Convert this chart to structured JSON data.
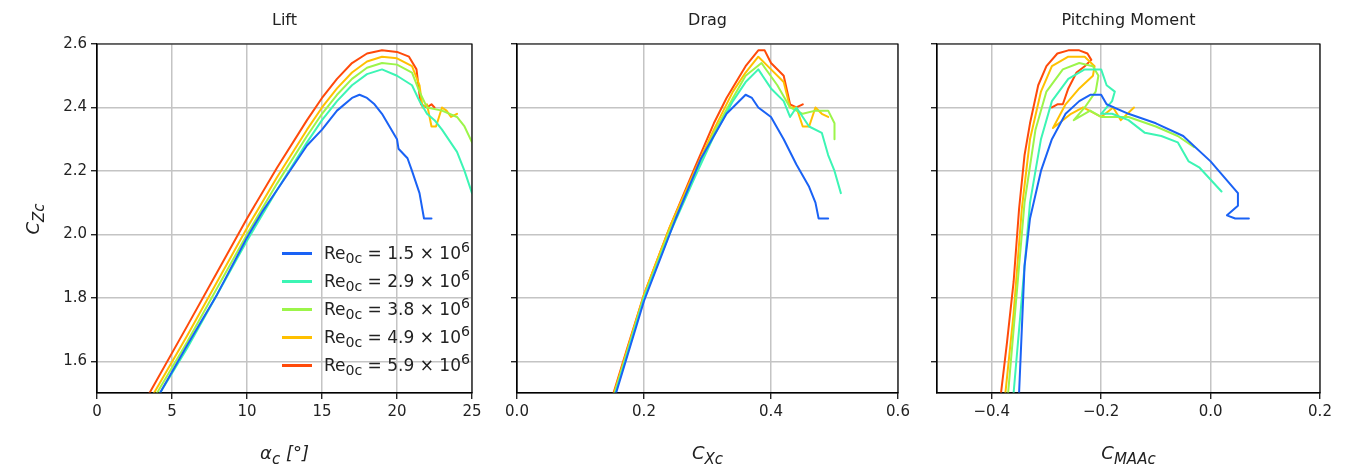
{
  "chart_data": [
    {
      "type": "line",
      "title": "Lift",
      "xlabel": "α$_{c}$ [°]",
      "ylabel": "C$_{Zc}$",
      "xlim": [
        0,
        25
      ],
      "xticks": [
        0,
        5,
        10,
        15,
        20,
        25
      ],
      "ylim": [
        1.5,
        2.6
      ],
      "yticks": [
        1.6,
        1.8,
        {
          "value": 2,
          "label": "2.0"
        },
        2.2,
        2.4,
        2.6
      ],
      "grid": true,
      "legend": "bottom right",
      "marker": "none",
      "line_style": "solid",
      "series": [
        {
          "name": "Re$_{0c}$ = 1.5 × 10$^{6}$",
          "color": "#1a62f5",
          "x": [
            4.2,
            6,
            8,
            10,
            11,
            12,
            13,
            14,
            15,
            16,
            17,
            17.5,
            18,
            18.5,
            19,
            19.5,
            20,
            20.1,
            20.7,
            21,
            21.5,
            21.8,
            22.3
          ],
          "values": [
            1.5,
            1.65,
            1.81,
            1.99,
            2.07,
            2.14,
            2.21,
            2.28,
            2.33,
            2.39,
            2.43,
            2.44,
            2.43,
            2.41,
            2.38,
            2.34,
            2.3,
            2.27,
            2.24,
            2.2,
            2.13,
            2.05,
            2.05
          ]
        },
        {
          "name": "Re$_{0c}$ = 2.9 × 10$^{6}$",
          "color": "#3cf5b4",
          "x": [
            4.2,
            6,
            8,
            10,
            12,
            14,
            15,
            16,
            17,
            18,
            19,
            20,
            21,
            21.5,
            22,
            22.5,
            23,
            24,
            24.5,
            25
          ],
          "values": [
            1.5,
            1.64,
            1.81,
            1.98,
            2.14,
            2.29,
            2.36,
            2.42,
            2.47,
            2.505,
            2.52,
            2.5,
            2.47,
            2.42,
            2.38,
            2.36,
            2.33,
            2.26,
            2.2,
            2.13
          ]
        },
        {
          "name": "Re$_{0c}$ = 3.8 × 10$^{6}$",
          "color": "#9cf54a",
          "x": [
            4,
            6,
            8,
            10,
            12,
            14,
            15,
            16,
            17,
            18,
            19,
            20,
            21,
            21.5,
            22,
            23,
            24,
            24.5,
            25
          ],
          "values": [
            1.5,
            1.66,
            1.83,
            2,
            2.16,
            2.31,
            2.38,
            2.44,
            2.49,
            2.525,
            2.54,
            2.535,
            2.51,
            2.45,
            2.4,
            2.39,
            2.37,
            2.34,
            2.29
          ]
        },
        {
          "name": "Re$_{0c}$ = 4.9 × 10$^{6}$",
          "color": "#ffc000",
          "x": [
            3.8,
            6,
            8,
            10,
            12,
            14,
            15,
            16,
            17,
            18,
            19,
            20,
            21,
            21.5,
            21.7,
            22,
            22.3,
            22.6,
            23,
            23.3,
            23.6,
            24
          ],
          "values": [
            1.5,
            1.68,
            1.85,
            2.02,
            2.18,
            2.33,
            2.4,
            2.46,
            2.51,
            2.545,
            2.56,
            2.555,
            2.53,
            2.47,
            2.4,
            2.41,
            2.34,
            2.34,
            2.4,
            2.39,
            2.37,
            2.38
          ]
        },
        {
          "name": "Re$_{0c}$ = 5.9 × 10$^{6}$",
          "color": "#ff4a0a",
          "x": [
            3.5,
            6,
            8,
            10,
            12,
            14,
            15,
            16,
            17,
            18,
            19,
            20,
            20.8,
            21.3,
            21.5,
            21.6,
            22,
            22.3,
            22.5
          ],
          "values": [
            1.5,
            1.71,
            1.88,
            2.05,
            2.21,
            2.36,
            2.43,
            2.49,
            2.54,
            2.57,
            2.58,
            2.575,
            2.56,
            2.52,
            2.44,
            2.41,
            2.4,
            2.41,
            2.4
          ]
        }
      ]
    },
    {
      "type": "line",
      "title": "Drag",
      "xlabel": "C$_{Xc}$",
      "xlim": [
        0,
        0.6
      ],
      "xticks": [
        {
          "value": 0,
          "label": "0.0"
        },
        0.2,
        0.4,
        0.6
      ],
      "ylim": [
        1.5,
        2.6
      ],
      "yticks": [
        1.6,
        1.8,
        2,
        2.2,
        2.4,
        2.6
      ],
      "tick_labels": "x",
      "grid": true,
      "marker": "none",
      "line_style": "solid",
      "series": [
        {
          "color": "#1a62f5",
          "x": [
            0.156,
            0.2,
            0.25,
            0.29,
            0.33,
            0.36,
            0.37,
            0.38,
            0.4,
            0.42,
            0.44,
            0.46,
            0.47,
            0.475,
            0.49
          ],
          "values": [
            1.5,
            1.79,
            2.05,
            2.24,
            2.38,
            2.44,
            2.43,
            2.4,
            2.37,
            2.3,
            2.22,
            2.15,
            2.1,
            2.05,
            2.05
          ]
        },
        {
          "color": "#3cf5b4",
          "x": [
            0.155,
            0.2,
            0.24,
            0.28,
            0.31,
            0.34,
            0.36,
            0.38,
            0.4,
            0.42,
            0.43,
            0.44,
            0.46,
            0.48,
            0.49,
            0.5,
            0.51
          ],
          "values": [
            1.5,
            1.8,
            2,
            2.18,
            2.31,
            2.42,
            2.48,
            2.52,
            2.46,
            2.42,
            2.37,
            2.4,
            2.34,
            2.32,
            2.25,
            2.2,
            2.13
          ]
        },
        {
          "color": "#9cf54a",
          "x": [
            0.154,
            0.2,
            0.24,
            0.28,
            0.31,
            0.34,
            0.36,
            0.385,
            0.41,
            0.43,
            0.45,
            0.47,
            0.49,
            0.5,
            0.5
          ],
          "values": [
            1.5,
            1.8,
            2.01,
            2.19,
            2.32,
            2.43,
            2.5,
            2.54,
            2.47,
            2.4,
            2.38,
            2.39,
            2.39,
            2.35,
            2.3
          ]
        },
        {
          "color": "#ffc000",
          "x": [
            0.153,
            0.2,
            0.24,
            0.28,
            0.31,
            0.34,
            0.36,
            0.38,
            0.4,
            0.42,
            0.43,
            0.44,
            0.45,
            0.46,
            0.47,
            0.48,
            0.49
          ],
          "values": [
            1.5,
            1.81,
            2.02,
            2.2,
            2.33,
            2.45,
            2.51,
            2.56,
            2.52,
            2.48,
            2.4,
            2.4,
            2.34,
            2.34,
            2.4,
            2.38,
            2.37
          ]
        },
        {
          "color": "#ff4a0a",
          "x": [
            0.152,
            0.175,
            0.2,
            0.24,
            0.28,
            0.31,
            0.33,
            0.36,
            0.38,
            0.39,
            0.4,
            0.42,
            0.43,
            0.44,
            0.45
          ],
          "values": [
            1.5,
            1.65,
            1.81,
            2.02,
            2.21,
            2.35,
            2.43,
            2.53,
            2.58,
            2.58,
            2.54,
            2.5,
            2.41,
            2.4,
            2.41
          ]
        }
      ]
    },
    {
      "type": "line",
      "title": "Pitching Moment",
      "xlabel": "C$_{MAAc}$",
      "xlim": [
        -0.5,
        0.2
      ],
      "xticks": [
        {
          "value": -0.4,
          "label": "−0.4"
        },
        {
          "value": -0.2,
          "label": "−0.2"
        },
        {
          "value": 0,
          "label": "0.0"
        },
        0.2
      ],
      "ylim": [
        1.5,
        2.6
      ],
      "yticks": [
        1.6,
        1.8,
        2,
        2.2,
        2.4,
        2.6
      ],
      "tick_labels": "x",
      "grid": true,
      "marker": "none",
      "line_style": "solid",
      "series": [
        {
          "color": "#1a62f5",
          "x": [
            -0.35,
            -0.345,
            -0.34,
            -0.33,
            -0.31,
            -0.29,
            -0.265,
            -0.24,
            -0.22,
            -0.2,
            -0.19,
            -0.15,
            -0.1,
            -0.05,
            0,
            0.05,
            0.05,
            0.03,
            0.045,
            0.07
          ],
          "values": [
            1.5,
            1.7,
            1.9,
            2.05,
            2.2,
            2.3,
            2.38,
            2.42,
            2.44,
            2.44,
            2.41,
            2.38,
            2.35,
            2.31,
            2.23,
            2.13,
            2.09,
            2.06,
            2.05,
            2.05
          ]
        },
        {
          "color": "#3cf5b4",
          "x": [
            -0.36,
            -0.345,
            -0.33,
            -0.31,
            -0.29,
            -0.26,
            -0.23,
            -0.2,
            -0.19,
            -0.175,
            -0.18,
            -0.2,
            -0.18,
            -0.15,
            -0.12,
            -0.09,
            -0.06,
            -0.04,
            -0.02,
            0.02
          ],
          "values": [
            1.5,
            1.8,
            2.1,
            2.3,
            2.42,
            2.49,
            2.52,
            2.52,
            2.47,
            2.45,
            2.42,
            2.38,
            2.38,
            2.36,
            2.32,
            2.31,
            2.29,
            2.23,
            2.21,
            2.135
          ]
        },
        {
          "color": "#9cf54a",
          "x": [
            -0.37,
            -0.355,
            -0.34,
            -0.32,
            -0.3,
            -0.27,
            -0.24,
            -0.215,
            -0.205,
            -0.21,
            -0.23,
            -0.25,
            -0.22,
            -0.2,
            -0.15,
            -0.1,
            -0.06,
            -0.03
          ],
          "values": [
            1.5,
            1.8,
            2.1,
            2.33,
            2.45,
            2.52,
            2.54,
            2.53,
            2.5,
            2.45,
            2.4,
            2.36,
            2.39,
            2.37,
            2.37,
            2.34,
            2.31,
            2.275
          ]
        },
        {
          "color": "#ffc000",
          "x": [
            -0.375,
            -0.36,
            -0.345,
            -0.33,
            -0.31,
            -0.29,
            -0.26,
            -0.23,
            -0.212,
            -0.215,
            -0.24,
            -0.265,
            -0.288,
            -0.255,
            -0.233,
            -0.2,
            -0.178,
            -0.164,
            -0.14
          ],
          "values": [
            1.5,
            1.75,
            2.08,
            2.3,
            2.45,
            2.53,
            2.56,
            2.56,
            2.53,
            2.5,
            2.46,
            2.41,
            2.335,
            2.38,
            2.4,
            2.37,
            2.4,
            2.36,
            2.4
          ]
        },
        {
          "color": "#ff4a0a",
          "x": [
            -0.383,
            -0.372,
            -0.36,
            -0.35,
            -0.34,
            -0.33,
            -0.315,
            -0.3,
            -0.28,
            -0.26,
            -0.24,
            -0.225,
            -0.218,
            -0.23,
            -0.245,
            -0.26,
            -0.27,
            -0.28,
            -0.29
          ],
          "values": [
            1.5,
            1.66,
            1.85,
            2.08,
            2.25,
            2.35,
            2.47,
            2.53,
            2.57,
            2.58,
            2.58,
            2.57,
            2.55,
            2.53,
            2.51,
            2.46,
            2.41,
            2.41,
            2.4
          ]
        }
      ]
    }
  ]
}
